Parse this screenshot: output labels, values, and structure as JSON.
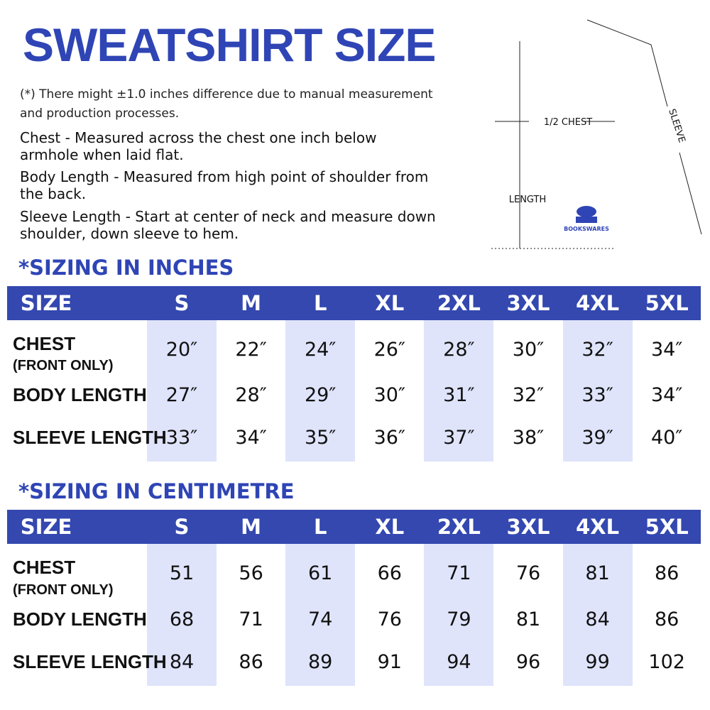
{
  "title": "SWEATSHIRT SIZE",
  "note": "(*) There might ±1.0 inches difference due to manual measurement and production processes.",
  "descriptions": [
    "Chest - Measured across the chest one inch below armhole when laid flat.",
    "Body Length - Measured from high point of shoulder from the back.",
    "Sleeve Length - Start at center of neck and measure down shoulder, down sleeve to hem."
  ],
  "diagram": {
    "chest_label": "1/2 CHEST",
    "length_label": "LENGTH",
    "sleeve_label": "SLEEVE",
    "logo_text": "BOOKSWARES",
    "accent": "#2f45b5"
  },
  "colors": {
    "header": "#3448b0",
    "title": "#2f45b5",
    "shade": "#dfe4fb"
  },
  "tables": [
    {
      "title": "*SIZING IN INCHES",
      "size_label": "SIZE",
      "sizes": [
        "S",
        "M",
        "L",
        "XL",
        "2XL",
        "3XL",
        "4XL",
        "5XL"
      ],
      "rows": [
        {
          "label": "CHEST",
          "sublabel": "(FRONT ONLY)",
          "values": [
            "20″",
            "22″",
            "24″",
            "26″",
            "28″",
            "30″",
            "32″",
            "34″"
          ]
        },
        {
          "label": "BODY LENGTH",
          "values": [
            "27″",
            "28″",
            "29″",
            "30″",
            "31″",
            "32″",
            "33″",
            "34″"
          ]
        },
        {
          "label": "SLEEVE LENGTH",
          "values": [
            "33″",
            "34″",
            "35″",
            "36″",
            "37″",
            "38″",
            "39″",
            "40″"
          ]
        }
      ]
    },
    {
      "title": "*SIZING IN CENTIMETRE",
      "size_label": "SIZE",
      "sizes": [
        "S",
        "M",
        "L",
        "XL",
        "2XL",
        "3XL",
        "4XL",
        "5XL"
      ],
      "rows": [
        {
          "label": "CHEST",
          "sublabel": "(FRONT ONLY)",
          "values": [
            "51",
            "56",
            "61",
            "66",
            "71",
            "76",
            "81",
            "86"
          ]
        },
        {
          "label": "BODY LENGTH",
          "values": [
            "68",
            "71",
            "74",
            "76",
            "79",
            "81",
            "84",
            "86"
          ]
        },
        {
          "label": "SLEEVE LENGTH",
          "values": [
            "84",
            "86",
            "89",
            "91",
            "94",
            "96",
            "99",
            "102"
          ]
        }
      ]
    }
  ]
}
